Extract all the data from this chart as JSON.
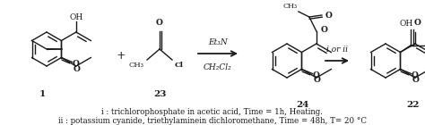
{
  "bg_color": "#ffffff",
  "fig_width": 4.74,
  "fig_height": 1.4,
  "dpi": 100,
  "text_color": "#1a1a1a",
  "font_size_labels": 7.5,
  "font_size_footnote": 6.2,
  "footnote1": "i : trichlorophosphate in acetic acid, Time = 1h, Heating.",
  "footnote2": "ii : potassium cyanide, triethylaminein dichloromethane, Time = 48h, T= 20 °C",
  "label1": "1",
  "label23": "23",
  "label24": "24",
  "label22": "22",
  "arrow1_top": "Et₃N",
  "arrow1_bot": "CH₂Cl₂",
  "arrow2_label": "i or ii"
}
